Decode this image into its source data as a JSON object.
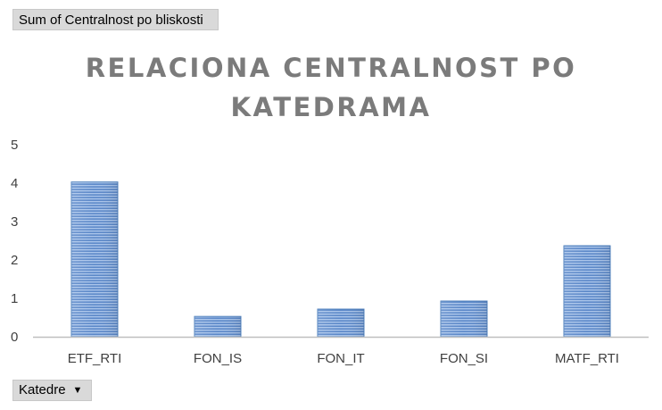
{
  "filter_buttons": {
    "value_field": "Sum of Centralnost po bliskosti",
    "axis_field": "Katedre"
  },
  "chart_data": {
    "type": "bar",
    "title": "RELACIONA CENTRALNOST PO KATEDRAMA",
    "categories": [
      "ETF_RTI",
      "FON_IS",
      "FON_IT",
      "FON_SI",
      "MATF_RTI"
    ],
    "values": [
      4.03,
      0.53,
      0.72,
      0.93,
      2.37
    ],
    "y_ticks": [
      "0",
      "1",
      "2",
      "3",
      "4",
      "5"
    ],
    "ylim": [
      0,
      5
    ],
    "grid": false,
    "legend": "none",
    "bar_color": "#4f81bd",
    "xlabel": "",
    "ylabel": ""
  }
}
